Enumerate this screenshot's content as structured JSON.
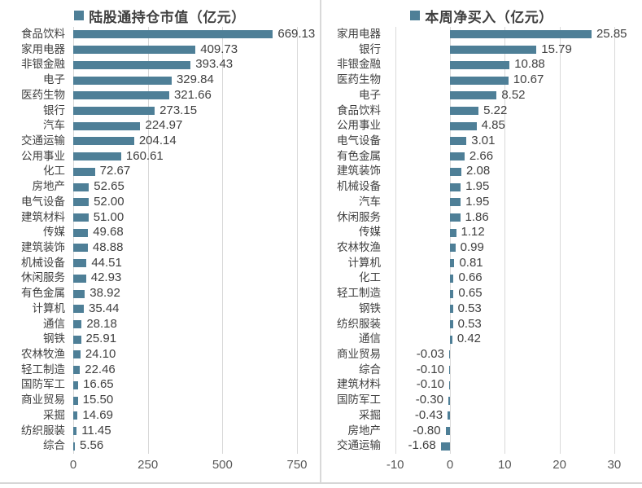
{
  "figure": {
    "background": "#ffffff",
    "bar_color": "#4e7f97",
    "grid_color": "#d9d9d9",
    "divider_color": "#d9d9d9",
    "label_color": "#3f3f3f",
    "axis_text_color": "#595959"
  },
  "chart_data": [
    {
      "type": "bar",
      "orientation": "horizontal",
      "title": "陆股通持仓市值（亿元）",
      "legend_position": "top",
      "grid": true,
      "categories": [
        "食品饮料",
        "家用电器",
        "非银金融",
        "电子",
        "医药生物",
        "银行",
        "汽车",
        "交通运输",
        "公用事业",
        "化工",
        "房地产",
        "电气设备",
        "建筑材料",
        "传媒",
        "建筑装饰",
        "机械设备",
        "休闲服务",
        "有色金属",
        "计算机",
        "通信",
        "钢铁",
        "农林牧渔",
        "轻工制造",
        "国防军工",
        "商业贸易",
        "采掘",
        "纺织服装",
        "综合"
      ],
      "values": [
        669.13,
        409.73,
        393.43,
        329.84,
        321.66,
        273.15,
        224.97,
        204.14,
        160.61,
        72.67,
        52.65,
        52.0,
        51.0,
        49.68,
        48.88,
        44.51,
        42.93,
        38.92,
        35.44,
        28.18,
        25.91,
        24.1,
        22.46,
        16.65,
        15.5,
        14.69,
        11.45,
        5.56
      ],
      "value_labels": [
        "669.13",
        "409.73",
        "393.43",
        "329.84",
        "321.66",
        "273.15",
        "224.97",
        "204.14",
        "160.61",
        "72.67",
        "52.65",
        "52.00",
        "51.00",
        "49.68",
        "48.88",
        "44.51",
        "42.93",
        "38.92",
        "35.44",
        "28.18",
        "25.91",
        "24.10",
        "22.46",
        "16.65",
        "15.50",
        "14.69",
        "11.45",
        "5.56"
      ],
      "xticks": [
        0,
        250,
        500,
        750
      ],
      "xtick_labels": [
        "0",
        "250",
        "500",
        "750"
      ],
      "xlim": [
        0,
        825
      ]
    },
    {
      "type": "bar",
      "orientation": "horizontal",
      "title": "本周净买入（亿元）",
      "legend_position": "top",
      "grid": true,
      "categories": [
        "家用电器",
        "银行",
        "非银金融",
        "医药生物",
        "电子",
        "食品饮料",
        "公用事业",
        "电气设备",
        "有色金属",
        "建筑装饰",
        "机械设备",
        "汽车",
        "休闲服务",
        "传媒",
        "农林牧渔",
        "计算机",
        "化工",
        "轻工制造",
        "钢铁",
        "纺织服装",
        "通信",
        "商业贸易",
        "综合",
        "建筑材料",
        "国防军工",
        "采掘",
        "房地产",
        "交通运输"
      ],
      "values": [
        25.85,
        15.79,
        10.88,
        10.67,
        8.52,
        5.22,
        4.85,
        3.01,
        2.66,
        2.08,
        1.95,
        1.95,
        1.86,
        1.12,
        0.99,
        0.81,
        0.66,
        0.65,
        0.53,
        0.53,
        0.42,
        -0.03,
        -0.1,
        -0.1,
        -0.3,
        -0.43,
        -0.8,
        -1.68
      ],
      "value_labels": [
        "25.85",
        "15.79",
        "10.88",
        "10.67",
        "8.52",
        "5.22",
        "4.85",
        "3.01",
        "2.66",
        "2.08",
        "1.95",
        "1.95",
        "1.86",
        "1.12",
        "0.99",
        "0.81",
        "0.66",
        "0.65",
        "0.53",
        "0.53",
        "0.42",
        "-0.03",
        "-0.10",
        "-0.10",
        "-0.30",
        "-0.43",
        "-0.80",
        "-1.68"
      ],
      "xticks": [
        -10,
        0,
        10,
        20,
        30
      ],
      "xtick_labels": [
        "-10",
        "0",
        "10",
        "20",
        "30"
      ],
      "xlim": [
        -12.4,
        32.8
      ]
    }
  ]
}
